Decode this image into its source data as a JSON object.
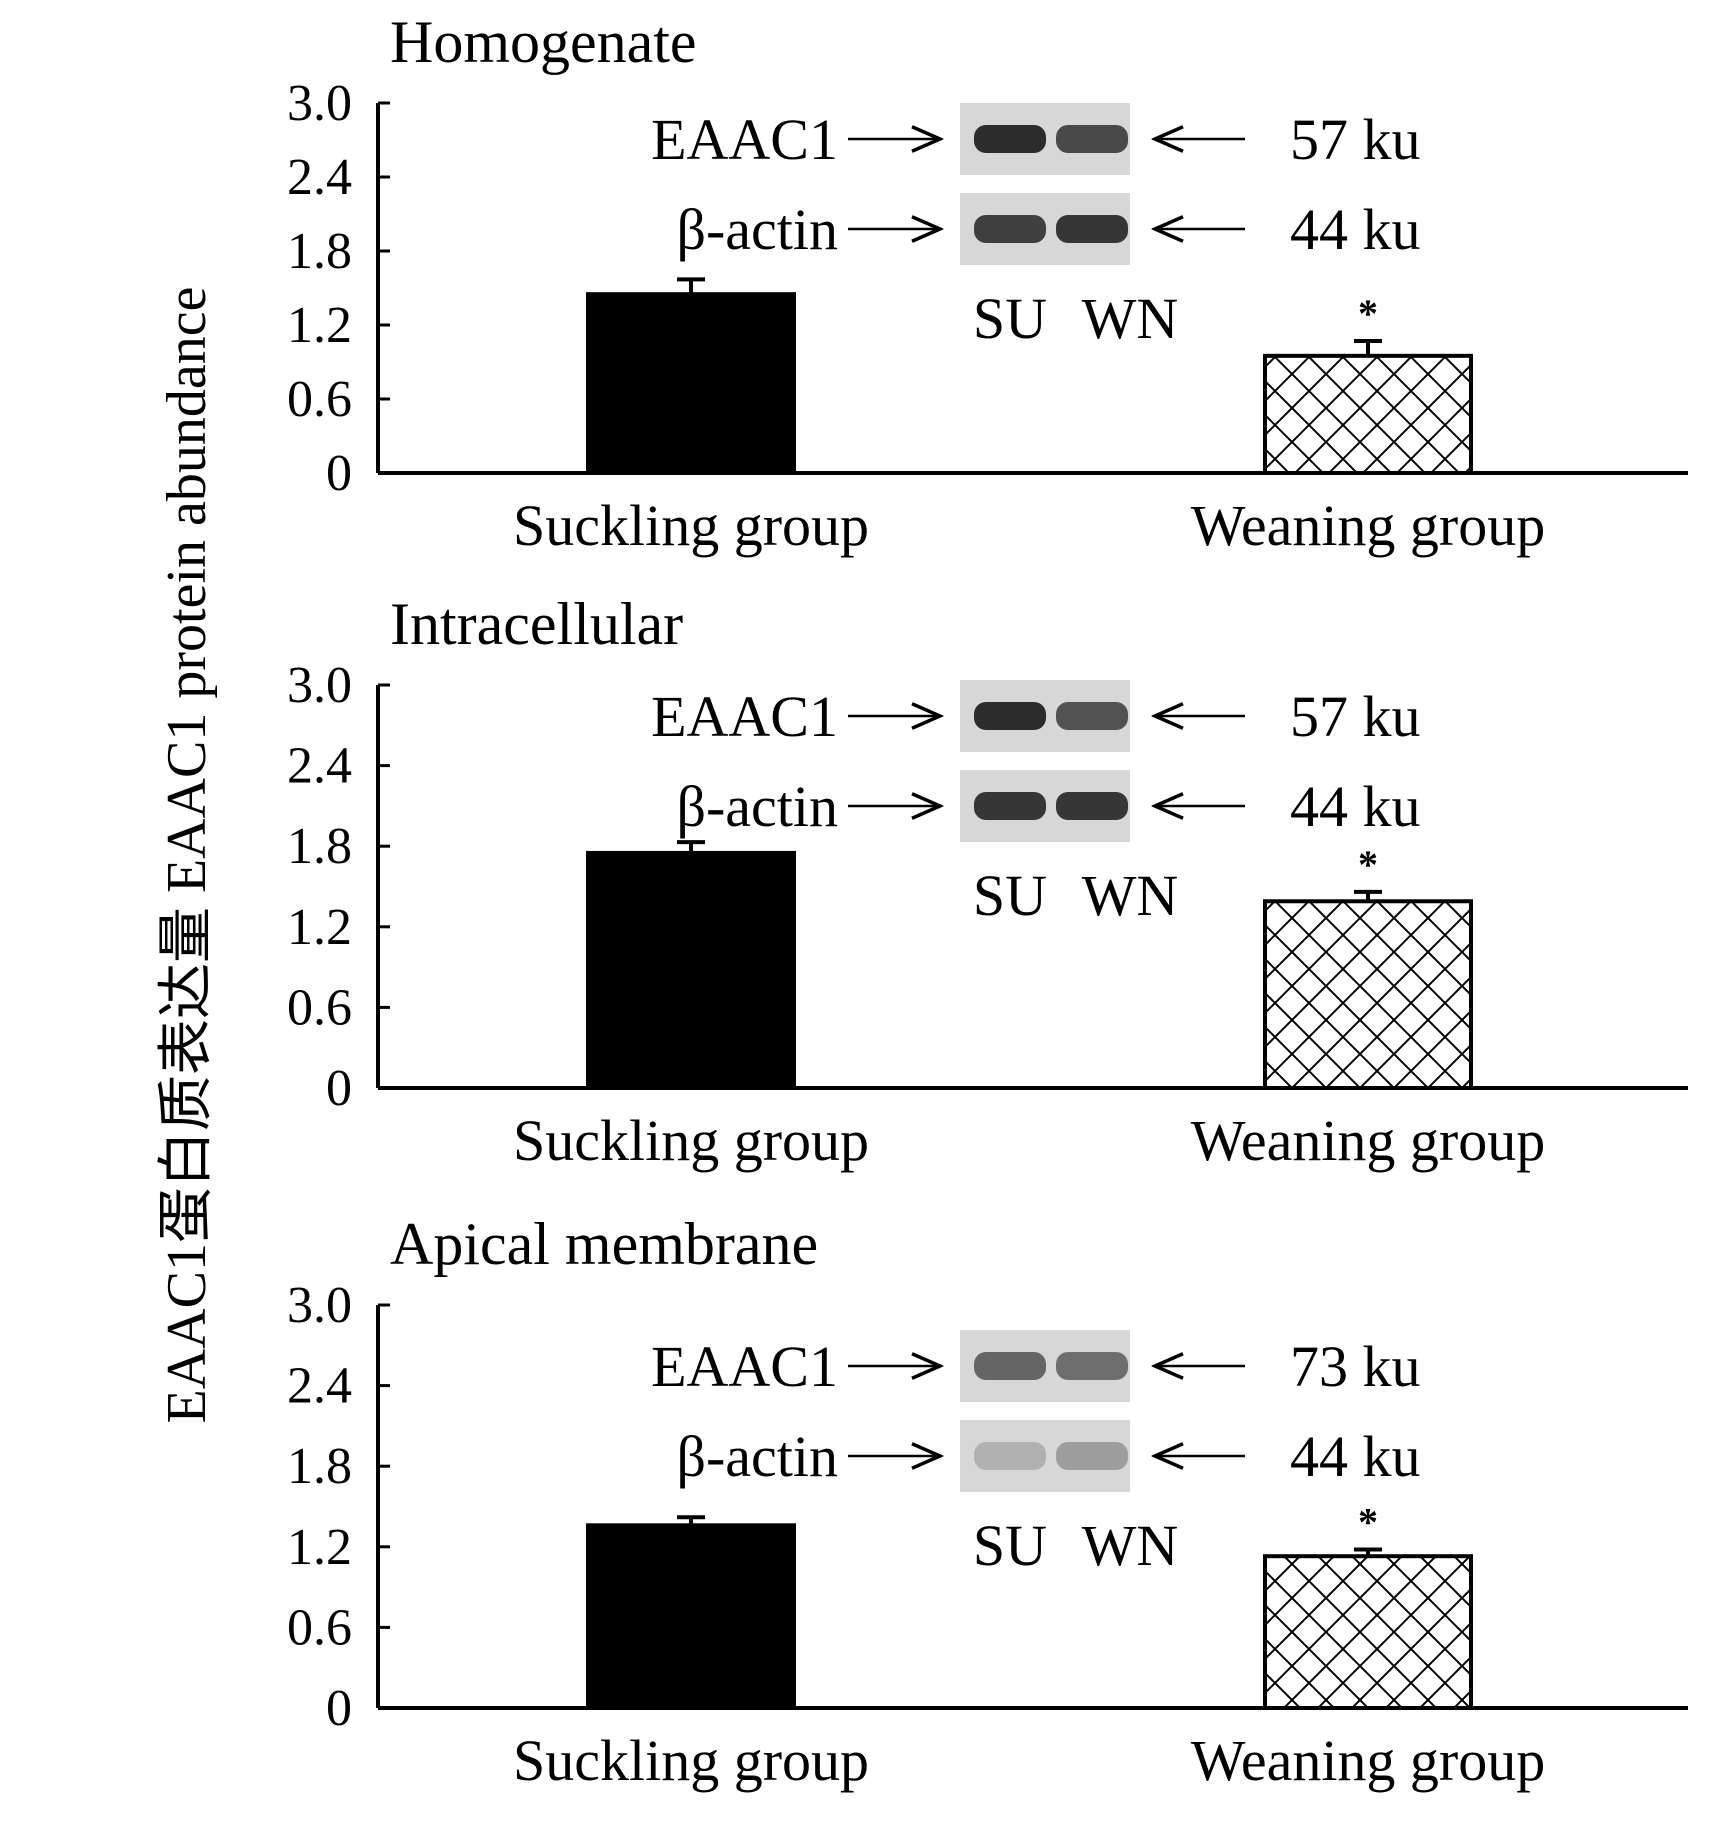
{
  "colors": {
    "ink": "#000000",
    "background": "#ffffff",
    "blot_bg": "#d7d7d7",
    "band": "#2a2a2a"
  },
  "chart_data": [
    {
      "type": "bar",
      "title": "Homogenate",
      "ylabel": "EAAC1蛋白质表达量 EAAC1 protein abundance",
      "ylim": [
        0,
        3.0
      ],
      "yticks": [
        "0",
        "0.6",
        "1.2",
        "1.8",
        "2.4",
        "3.0"
      ],
      "categories": [
        "Suckling group",
        "Weaning group"
      ],
      "values": [
        1.45,
        0.95
      ],
      "errors": [
        0.12,
        0.12
      ],
      "significance": [
        "",
        "*"
      ],
      "bar_fill": [
        "solid",
        "crosshatch"
      ],
      "blot": {
        "rows": [
          {
            "label": "EAAC1",
            "size": "57 ku",
            "intensity": [
              0.9,
              0.75
            ]
          },
          {
            "label": "β-actin",
            "size": "44 ku",
            "intensity": [
              0.8,
              0.85
            ]
          }
        ],
        "lanes": [
          "SU",
          "WN"
        ]
      }
    },
    {
      "type": "bar",
      "title": "Intracellular",
      "ylabel": "EAAC1蛋白质表达量 EAAC1 protein abundance",
      "ylim": [
        0,
        3.0
      ],
      "yticks": [
        "0",
        "0.6",
        "1.2",
        "1.8",
        "2.4",
        "3.0"
      ],
      "categories": [
        "Suckling group",
        "Weaning group"
      ],
      "values": [
        1.75,
        1.39
      ],
      "errors": [
        0.08,
        0.07
      ],
      "significance": [
        "",
        "*"
      ],
      "bar_fill": [
        "solid",
        "crosshatch"
      ],
      "blot": {
        "rows": [
          {
            "label": "EAAC1",
            "size": "57 ku",
            "intensity": [
              0.9,
              0.7
            ]
          },
          {
            "label": "β-actin",
            "size": "44 ku",
            "intensity": [
              0.85,
              0.85
            ]
          }
        ],
        "lanes": [
          "SU",
          "WN"
        ]
      }
    },
    {
      "type": "bar",
      "title": "Apical membrane",
      "ylabel": "EAAC1蛋白质表达量 EAAC1 protein abundance",
      "ylim": [
        0,
        3.0
      ],
      "yticks": [
        "0",
        "0.6",
        "1.2",
        "1.8",
        "2.4",
        "3.0"
      ],
      "categories": [
        "Suckling group",
        "Weaning group"
      ],
      "values": [
        1.36,
        1.13
      ],
      "errors": [
        0.06,
        0.05
      ],
      "significance": [
        "",
        "*"
      ],
      "bar_fill": [
        "solid",
        "crosshatch"
      ],
      "blot": {
        "rows": [
          {
            "label": "EAAC1",
            "size": "73 ku",
            "intensity": [
              0.6,
              0.55
            ]
          },
          {
            "label": "β-actin",
            "size": "44 ku",
            "intensity": [
              0.2,
              0.3
            ]
          }
        ],
        "lanes": [
          "SU",
          "WN"
        ]
      }
    }
  ]
}
